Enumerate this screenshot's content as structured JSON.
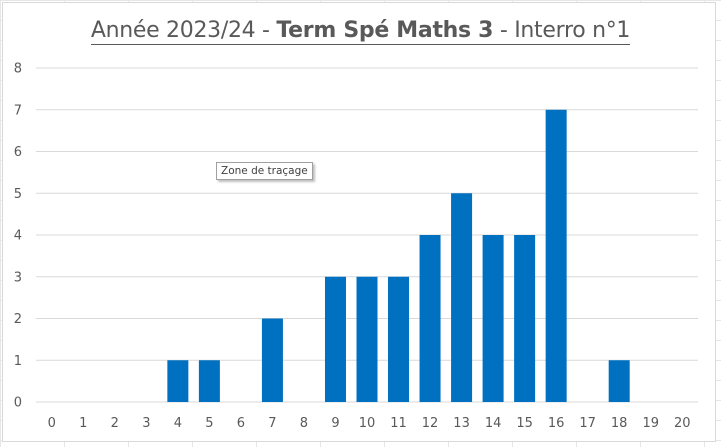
{
  "title": {
    "part1": "Année 2023/24 - ",
    "part2": "Term Spé Maths 3",
    "part3": " - Interro n°1"
  },
  "tooltip": "Zone de traçage",
  "colors": {
    "bar": "#0070C0",
    "grid": "#d9d9d9",
    "text": "#595959"
  },
  "chart_data": {
    "type": "bar",
    "title": "Année 2023/24 - Term Spé Maths 3 - Interro n°1",
    "categories": [
      "0",
      "1",
      "2",
      "3",
      "4",
      "5",
      "6",
      "7",
      "8",
      "9",
      "10",
      "11",
      "12",
      "13",
      "14",
      "15",
      "16",
      "17",
      "18",
      "19",
      "20"
    ],
    "values": [
      0,
      0,
      0,
      0,
      1,
      1,
      0,
      2,
      0,
      3,
      3,
      3,
      4,
      5,
      4,
      4,
      7,
      0,
      1,
      0,
      0
    ],
    "ylim": [
      0,
      8
    ],
    "yticks": [
      0,
      1,
      2,
      3,
      4,
      5,
      6,
      7,
      8
    ],
    "grid": true,
    "legend": "none",
    "xlabel": "",
    "ylabel": ""
  }
}
